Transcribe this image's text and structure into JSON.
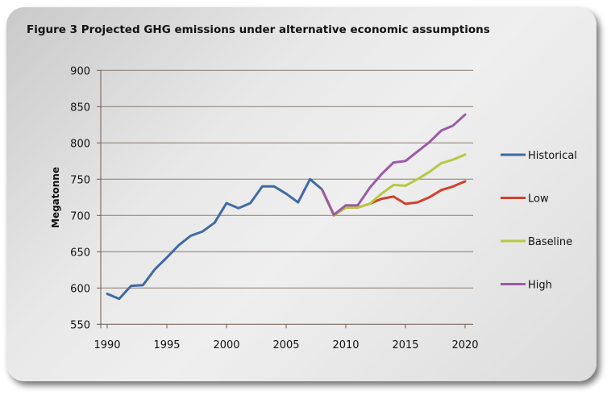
{
  "chart_data": {
    "type": "line",
    "title": "Figure 3 Projected GHG emissions under alternative economic assumptions",
    "xlabel": "",
    "ylabel": "Megatonne",
    "ylim": [
      550,
      900
    ],
    "yticks": [
      550,
      600,
      650,
      700,
      750,
      800,
      850,
      900
    ],
    "xlim": [
      1990,
      2020
    ],
    "xticks": [
      1990,
      1995,
      2000,
      2005,
      2010,
      2015,
      2020
    ],
    "grid": "horizontal",
    "legend_position": "right",
    "series": [
      {
        "name": "Historical",
        "color": "#3f6aa3",
        "x": [
          1990,
          1991,
          1992,
          1993,
          1994,
          1995,
          1996,
          1997,
          1998,
          1999,
          2000,
          2001,
          2002,
          2003,
          2004,
          2005,
          2006,
          2007,
          2008
        ],
        "values": [
          592,
          585,
          603,
          604,
          626,
          642,
          659,
          672,
          678,
          690,
          717,
          710,
          717,
          740,
          740,
          730,
          718,
          750,
          736
        ]
      },
      {
        "name": "Low",
        "color": "#d0412f",
        "x": [
          2008,
          2009,
          2010,
          2011,
          2012,
          2013,
          2014,
          2015,
          2016,
          2017,
          2018,
          2019,
          2020
        ],
        "values": [
          736,
          700,
          711,
          711,
          716,
          723,
          726,
          716,
          718,
          725,
          735,
          740,
          747
        ]
      },
      {
        "name": "Baseline",
        "color": "#b7c743",
        "x": [
          2008,
          2009,
          2010,
          2011,
          2012,
          2013,
          2014,
          2015,
          2016,
          2017,
          2018,
          2019,
          2020
        ],
        "values": [
          736,
          700,
          711,
          711,
          716,
          730,
          742,
          741,
          750,
          760,
          772,
          777,
          784
        ]
      },
      {
        "name": "High",
        "color": "#9a5ca6",
        "x": [
          2008,
          2009,
          2010,
          2011,
          2012,
          2013,
          2014,
          2015,
          2016,
          2017,
          2018,
          2019,
          2020
        ],
        "values": [
          736,
          701,
          714,
          714,
          738,
          757,
          773,
          775,
          788,
          801,
          817,
          824,
          839
        ]
      }
    ]
  }
}
